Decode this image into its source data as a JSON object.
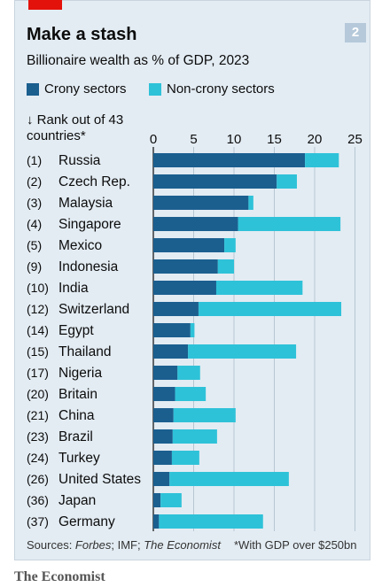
{
  "chart_data": {
    "type": "bar",
    "orientation": "horizontal",
    "stacked": true,
    "title": "Make a stash",
    "subtitle": "Billionaire wealth as % of GDP, 2023",
    "badge": "2",
    "row_header": "↓ Rank out of 43 countries*",
    "xlim": [
      0,
      25
    ],
    "xticks": [
      0,
      5,
      10,
      15,
      20,
      25
    ],
    "grid": true,
    "legend_position": "top",
    "categories": [
      "Russia",
      "Czech Rep.",
      "Malaysia",
      "Singapore",
      "Mexico",
      "Indonesia",
      "India",
      "Switzerland",
      "Egypt",
      "Thailand",
      "Nigeria",
      "Britain",
      "China",
      "Brazil",
      "Turkey",
      "United States",
      "Japan",
      "Germany"
    ],
    "ranks": [
      "(1)",
      "(2)",
      "(3)",
      "(4)",
      "(5)",
      "(9)",
      "(10)",
      "(12)",
      "(14)",
      "(15)",
      "(17)",
      "(20)",
      "(21)",
      "(23)",
      "(24)",
      "(26)",
      "(36)",
      "(37)"
    ],
    "series": [
      {
        "name": "Crony sectors",
        "color": "#1b5f8f",
        "values": [
          18.8,
          15.3,
          11.8,
          10.5,
          8.8,
          8.0,
          7.8,
          5.6,
          4.6,
          4.3,
          3.0,
          2.7,
          2.5,
          2.4,
          2.3,
          2.0,
          0.9,
          0.7
        ]
      },
      {
        "name": "Non-crony sectors",
        "color": "#2ec2d8",
        "values": [
          4.2,
          2.5,
          0.6,
          12.7,
          1.4,
          2.0,
          10.7,
          17.7,
          0.5,
          13.4,
          2.8,
          3.8,
          7.7,
          5.5,
          3.4,
          14.8,
          2.6,
          12.9
        ]
      }
    ],
    "sources_prefix": "Sources: ",
    "sources_forbes": "Forbes",
    "sources_middle": "; IMF; ",
    "sources_economist": "The Economist",
    "footnote": "*With GDP over $250bn"
  },
  "publisher": "The Economist"
}
